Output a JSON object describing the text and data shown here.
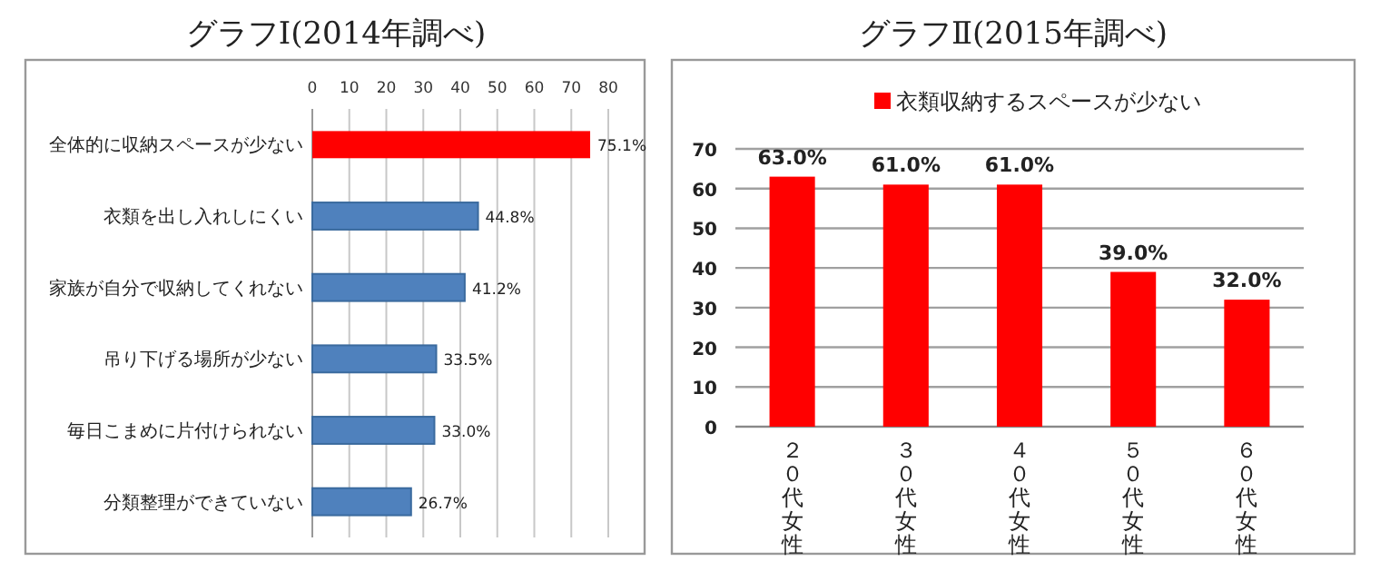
{
  "chart_data": [
    {
      "type": "bar",
      "orientation": "horizontal",
      "title": "グラフⅠ(2014年調べ)",
      "categories": [
        "全体的に収納スペースが少ない",
        "衣類を出し入れしにくい",
        "家族が自分で収納してくれない",
        "吊り下げる場所が少ない",
        "毎日こまめに片付けられない",
        "分類整理ができていない"
      ],
      "values": [
        75.1,
        44.8,
        41.2,
        33.5,
        33.0,
        26.7
      ],
      "colors": [
        "#ff0000",
        "#4f81bd",
        "#4f81bd",
        "#4f81bd",
        "#4f81bd",
        "#4f81bd"
      ],
      "value_labels": [
        "75.1%",
        "44.8%",
        "41.2%",
        "33.5%",
        "33.0%",
        "26.7%"
      ],
      "xlim": [
        0,
        80
      ],
      "xticks": [
        0,
        10,
        20,
        30,
        40,
        50,
        60,
        70,
        80
      ],
      "grid": "x"
    },
    {
      "type": "bar",
      "title": "グラフⅡ(2015年調べ)",
      "categories": [
        "２０代女性",
        "３０代女性",
        "４０代女性",
        "５０代女性",
        "６０代女性"
      ],
      "series": [
        {
          "name": "衣類収納するスペースが少ない",
          "color": "#ff0000",
          "values": [
            63.0,
            61.0,
            61.0,
            39.0,
            32.0
          ],
          "value_labels": [
            "63.0%",
            "61.0%",
            "61.0%",
            "39.0%",
            "32.0%"
          ]
        }
      ],
      "ylim": [
        0,
        70
      ],
      "yticks": [
        0,
        10,
        20,
        30,
        40,
        50,
        60,
        70
      ],
      "grid": "y",
      "legend": "top"
    }
  ]
}
